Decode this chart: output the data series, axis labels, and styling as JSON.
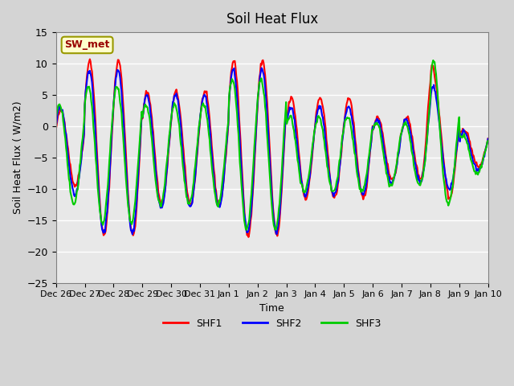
{
  "title": "Soil Heat Flux",
  "xlabel": "Time",
  "ylabel": "Soil Heat Flux ( W/m2)",
  "ylim": [
    -25,
    15
  ],
  "yticks": [
    -25,
    -20,
    -15,
    -10,
    -5,
    0,
    5,
    10,
    15
  ],
  "xtick_labels": [
    "Dec 26",
    "Dec 27",
    "Dec 28",
    "Dec 29",
    "Dec 30",
    "Dec 31",
    "Jan 1",
    "Jan 2",
    "Jan 3",
    "Jan 4",
    "Jan 5",
    "Jan 6",
    "Jan 7",
    "Jan 8",
    "Jan 9",
    "Jan 10"
  ],
  "legend_labels": [
    "SHF1",
    "SHF2",
    "SHF3"
  ],
  "line_colors": [
    "#ff0000",
    "#0000ff",
    "#00cc00"
  ],
  "line_width": 1.5,
  "annotation_text": "SW_met",
  "annotation_color": "#990000",
  "annotation_bg": "#ffffcc",
  "plot_bg": "#e8e8e8",
  "fig_bg": "#d4d4d4",
  "n_days": 15,
  "n_points": 600
}
